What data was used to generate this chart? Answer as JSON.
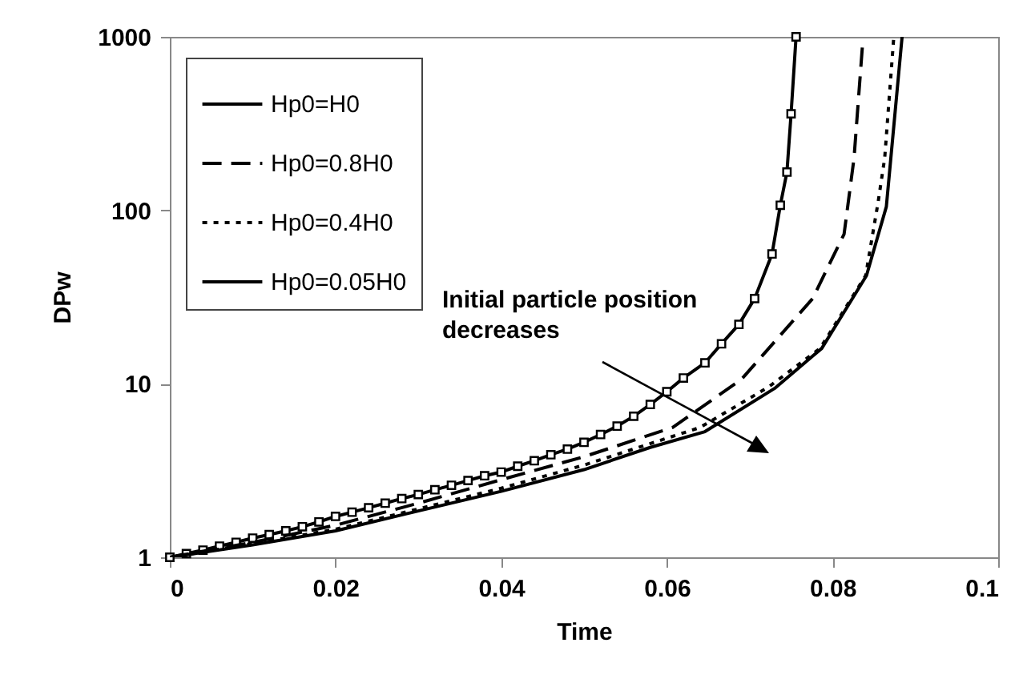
{
  "chart_data": {
    "type": "line",
    "xlabel": "Time",
    "ylabel": "DPw",
    "log": "y",
    "grid": false,
    "legend": "top left",
    "xlim": [
      0,
      0.1
    ],
    "xticks": [
      0,
      0.02,
      0.04,
      0.06,
      0.08,
      0.1
    ],
    "ylim": [
      1,
      1000
    ],
    "yticks": [
      1,
      10,
      100,
      1000
    ],
    "annotations": [
      "Initial particle position\ndecreases"
    ],
    "series": [
      {
        "name": "Hp0=H0",
        "color": "#000000",
        "marker": "square",
        "line_style": "solid",
        "x": [
          0,
          0.002,
          0.004,
          0.006,
          0.008,
          0.01,
          0.012,
          0.014,
          0.016,
          0.018,
          0.02,
          0.022,
          0.024,
          0.026,
          0.028,
          0.03,
          0.032,
          0.034,
          0.036,
          0.038,
          0.04,
          0.042,
          0.044,
          0.046,
          0.048,
          0.05,
          0.052,
          0.054,
          0.056,
          0.058,
          0.06,
          0.062,
          0.0646,
          0.0666,
          0.0687,
          0.0706,
          0.0727,
          0.0737,
          0.0745,
          0.075,
          0.0756
        ],
        "values": [
          1,
          1.05,
          1.1,
          1.16,
          1.22,
          1.29,
          1.35,
          1.42,
          1.5,
          1.6,
          1.72,
          1.82,
          1.93,
          2.05,
          2.18,
          2.3,
          2.45,
          2.6,
          2.77,
          2.95,
          3.1,
          3.35,
          3.6,
          3.9,
          4.2,
          4.6,
          5.1,
          5.7,
          6.5,
          7.6,
          9,
          10.8,
          13.2,
          17,
          22,
          31,
          56,
          107,
          166,
          360,
          1000
        ]
      },
      {
        "name": "Hp0=0.8H0",
        "color": "#000000",
        "marker": "none",
        "line_style": "dashed",
        "x": [
          0,
          0.01,
          0.02,
          0.03,
          0.04,
          0.05,
          0.0607,
          0.069,
          0.0776,
          0.0814,
          0.0826,
          0.0836
        ],
        "values": [
          1,
          1.22,
          1.53,
          2.05,
          2.8,
          3.8,
          5.6,
          10.6,
          31,
          73,
          200,
          870
        ]
      },
      {
        "name": "Hp0=0.4H0",
        "color": "#000000",
        "marker": "none",
        "line_style": "dotted",
        "x": [
          0,
          0.01,
          0.02,
          0.03,
          0.04,
          0.05,
          0.064,
          0.0723,
          0.0785,
          0.084,
          0.0855,
          0.0863,
          0.0874
        ],
        "values": [
          1,
          1.2,
          1.45,
          1.9,
          2.5,
          3.4,
          5.6,
          9.6,
          16,
          42,
          111,
          200,
          1000
        ]
      },
      {
        "name": "Hp0=0.05H0",
        "color": "#000000",
        "marker": "none",
        "line_style": "solid",
        "x": [
          0,
          0.01,
          0.02,
          0.03,
          0.04,
          0.05,
          0.058,
          0.0646,
          0.073,
          0.0787,
          0.0841,
          0.0865,
          0.0884
        ],
        "values": [
          1,
          1.18,
          1.42,
          1.85,
          2.4,
          3.2,
          4.3,
          5.3,
          9.4,
          16,
          42,
          105,
          1000
        ]
      }
    ]
  }
}
